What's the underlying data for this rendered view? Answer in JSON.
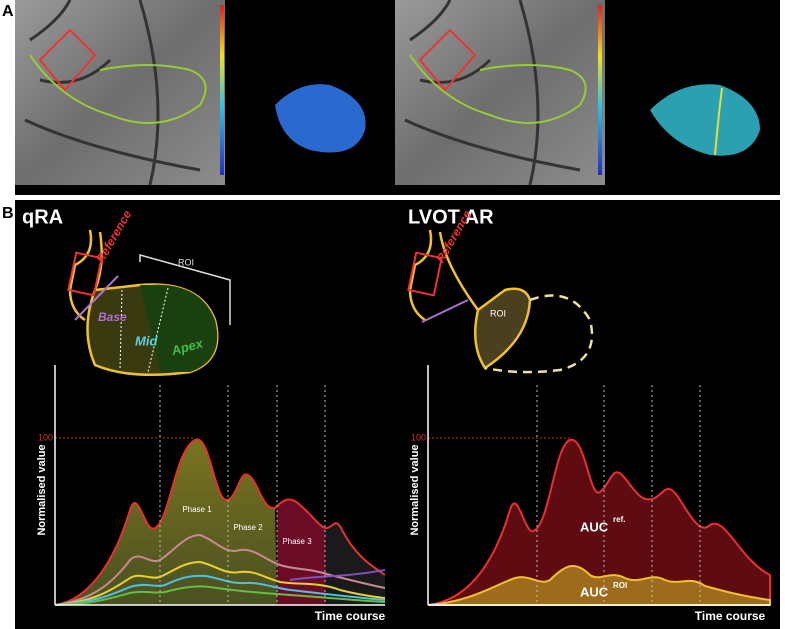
{
  "panel_a": {
    "label": "A"
  },
  "panel_b": {
    "label": "B",
    "left": {
      "title": "qRA",
      "schematic": {
        "reference": "Reference",
        "roi": "ROI",
        "base": "Base",
        "mid": "Mid",
        "apex": "Apex"
      },
      "graph": {
        "y_label": "Normalised value",
        "y_tick": "100",
        "x_label": "Time course",
        "phases": [
          "Phase 1",
          "Phase 2",
          "Phase 3"
        ]
      }
    },
    "right": {
      "title": "LVOT AR",
      "schematic": {
        "reference": "Reference",
        "roi": "ROI"
      },
      "graph": {
        "y_label": "Normalised value",
        "y_tick": "100",
        "x_label": "Time course",
        "auc_ref": {
          "text": "AUC",
          "sup": "ref."
        },
        "auc_roi": {
          "text": "AUC",
          "sup": "ROI"
        }
      }
    }
  }
}
